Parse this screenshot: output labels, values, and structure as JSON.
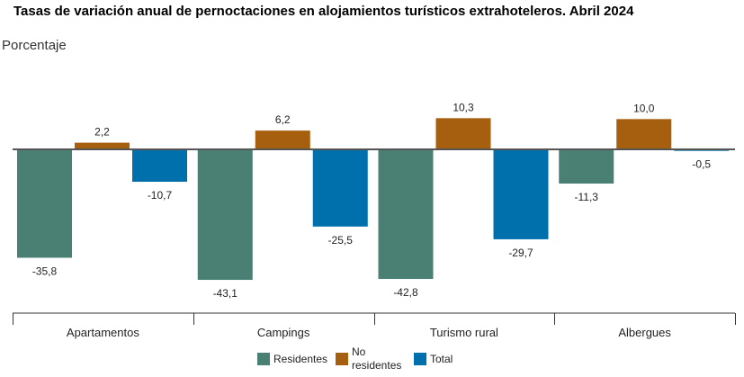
{
  "chart_data": {
    "type": "bar",
    "title": "Tasas de variación anual de pernoctaciones en alojamientos turísticos extrahoteleros. Abril 2024",
    "ylabel": "Porcentaje",
    "xlabel": "",
    "categories": [
      "Apartamentos",
      "Campings",
      "Turismo rural",
      "Albergues"
    ],
    "series": [
      {
        "name": "Residentes",
        "color": "#4a7f74",
        "values": [
          -35.8,
          -43.1,
          -42.8,
          -11.3
        ],
        "labels": [
          "-35,8",
          "-43,1",
          "-42,8",
          "-11,3"
        ]
      },
      {
        "name": "No residentes",
        "color": "#a65f0f",
        "values": [
          2.2,
          6.2,
          10.3,
          10.0
        ],
        "labels": [
          "2,2",
          "6,2",
          "10,3",
          "10,0"
        ]
      },
      {
        "name": "Total",
        "color": "#0070ad",
        "values": [
          -10.7,
          -25.5,
          -29.7,
          -0.5
        ],
        "labels": [
          "-10,7",
          "-25,5",
          "-29,7",
          "-0,5"
        ]
      }
    ],
    "legend": {
      "placement": "bottom",
      "items": [
        "Residentes",
        "No residentes",
        "Total"
      ]
    },
    "grid": false
  }
}
